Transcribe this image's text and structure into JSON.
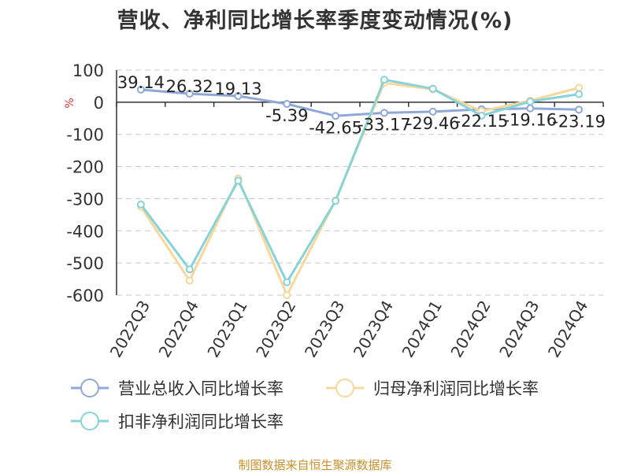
{
  "chart_data": {
    "type": "line",
    "title": "营收、净利同比增长率季度变动情况(%)",
    "ylabel": "%",
    "ylim": [
      -600,
      100
    ],
    "yticks": [
      100,
      0,
      -100,
      -200,
      -300,
      -400,
      -500,
      -600
    ],
    "grid": true,
    "legend_position": "bottom-left",
    "categories": [
      "2022Q3",
      "2022Q4",
      "2023Q1",
      "2023Q2",
      "2023Q3",
      "2023Q4",
      "2024Q1",
      "2024Q2",
      "2024Q3",
      "2024Q4"
    ],
    "series": [
      {
        "name": "营业总收入同比增长率",
        "color": "#8fa8d8",
        "values": [
          39.14,
          26.32,
          19.13,
          -5.39,
          -42.65,
          -33.17,
          -29.46,
          -22.15,
          -19.16,
          -23.19
        ],
        "labels": [
          "39.14",
          "26.32",
          "19.13",
          "-5.39",
          "-42.65",
          "-33.17",
          "-29.46",
          "-22.15",
          "-19.16",
          "-23.19"
        ]
      },
      {
        "name": "归母净利润同比增长率",
        "color": "#f7d89b",
        "values": [
          -325,
          -555,
          -237,
          -600,
          -305,
          60,
          40,
          -28,
          5,
          45
        ]
      },
      {
        "name": "扣非净利润同比增长率",
        "color": "#88d3d7",
        "values": [
          -318,
          -520,
          -244,
          -560,
          -307,
          70,
          42,
          -42,
          2,
          25
        ]
      }
    ]
  },
  "footer": {
    "source": "制图数据来自恒生聚源数据库"
  }
}
